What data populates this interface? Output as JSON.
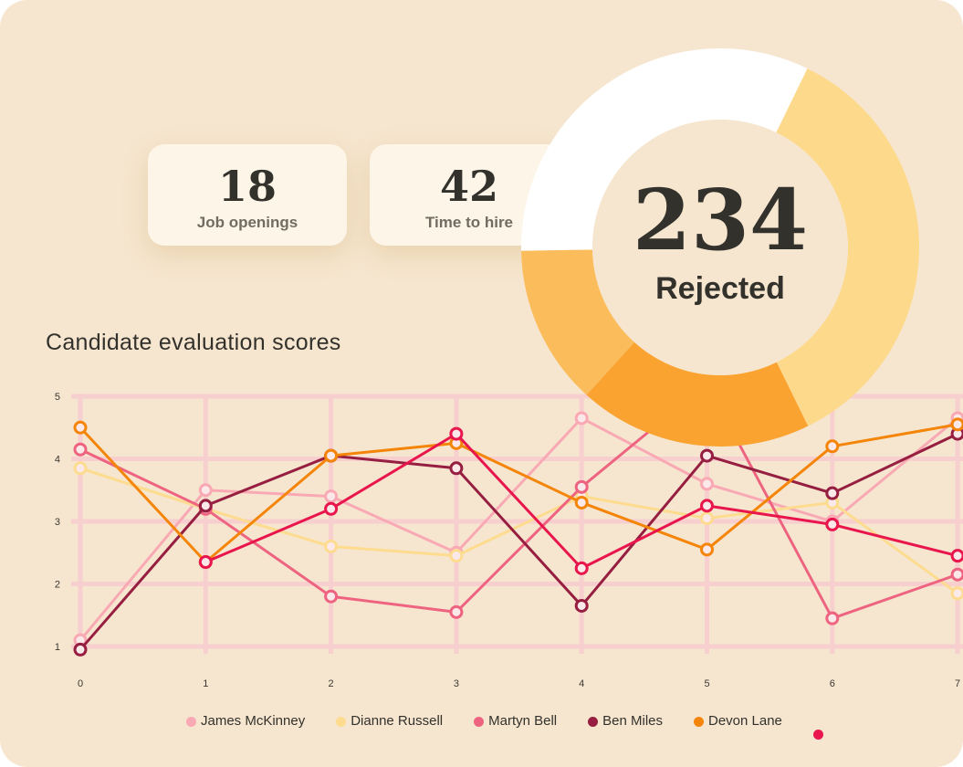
{
  "kpis": [
    {
      "value": "18",
      "label": "Job openings"
    },
    {
      "value": "42",
      "label": "Time to hire"
    }
  ],
  "donut": {
    "value": "234",
    "label": "Rejected",
    "segment_colors": [
      "#ffffff",
      "#fdd98b",
      "#fba330",
      "#fbbc5c"
    ],
    "segment_fractions": [
      0.325,
      0.355,
      0.19,
      0.13
    ]
  },
  "chart_title": "Candidate evaluation scores",
  "chart_data": {
    "type": "line",
    "title": "Candidate evaluation scores",
    "x": [
      0,
      1,
      2,
      3,
      4,
      5,
      6,
      7
    ],
    "ylim": [
      1,
      5
    ],
    "yticks": [
      1,
      2,
      3,
      4,
      5
    ],
    "grid": true,
    "legend_placement": "bottom",
    "series": [
      {
        "name": "James McKinney",
        "color": "#f9a9b4",
        "values": [
          1.1,
          3.5,
          3.4,
          2.5,
          4.65,
          3.6,
          3.0,
          4.65
        ]
      },
      {
        "name": "Dianne Russell",
        "color": "#fddb8f",
        "values": [
          3.85,
          3.2,
          2.6,
          2.45,
          3.4,
          3.05,
          3.3,
          1.85
        ]
      },
      {
        "name": "Martyn Bell",
        "color": "#ee6480",
        "values": [
          4.15,
          3.2,
          1.8,
          1.55,
          3.55,
          5.2,
          1.45,
          2.15
        ]
      },
      {
        "name": "Ben Miles",
        "color": "#961e40",
        "values": [
          0.95,
          3.25,
          4.05,
          3.85,
          1.65,
          4.05,
          3.45,
          4.4
        ]
      },
      {
        "name": "Devon Lane",
        "color": "#f48508",
        "values": [
          4.5,
          2.35,
          4.05,
          4.25,
          3.3,
          2.55,
          4.2,
          4.55
        ]
      },
      {
        "name": "",
        "color": "#e8164c",
        "values": [
          null,
          2.35,
          3.2,
          4.4,
          2.25,
          3.25,
          2.95,
          2.45
        ]
      }
    ]
  }
}
